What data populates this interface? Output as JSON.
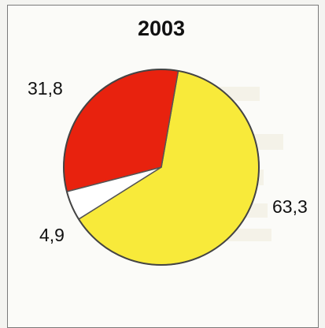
{
  "chart_data": {
    "type": "pie",
    "title": "2003",
    "slices": [
      {
        "label": "63,3",
        "value": 63.3,
        "color": "#f8ea3a"
      },
      {
        "label": "4,9",
        "value": 4.9,
        "color": "#ffffff"
      },
      {
        "label": "31,8",
        "value": 31.8,
        "color": "#e8220e"
      }
    ],
    "start_angle_deg": 10,
    "direction": "clockwise"
  }
}
